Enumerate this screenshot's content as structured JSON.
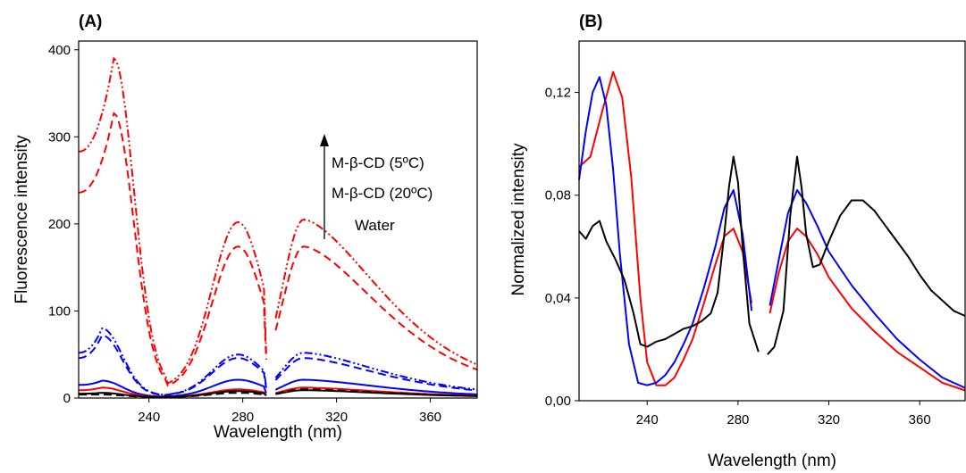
{
  "chart_data": [
    {
      "type": "line",
      "panel_label": "(A)",
      "xlabel": "Wavelength (nm)",
      "ylabel": "Fluorescence intensity",
      "xlim": [
        210,
        380
      ],
      "ylim": [
        0,
        410
      ],
      "xticks": [
        240,
        280,
        320,
        360
      ],
      "yticks": [
        0,
        100,
        200,
        300,
        400
      ],
      "x_tick_labels": [
        "240",
        "280",
        "320",
        "360"
      ],
      "y_tick_labels": [
        "0",
        "100",
        "200",
        "300",
        "400"
      ],
      "annotations": [
        "M-β-CD (5ºC)",
        "M-β-CD (20ºC)",
        "Water"
      ],
      "gap": [
        290,
        294
      ],
      "grid": false,
      "series": [
        {
          "color": "#ff0000",
          "dash": "dashdotdot",
          "base": 283,
          "y_at_280": 202,
          "peaks": {
            "x": [
              225,
              278,
              306
            ],
            "y": [
              390,
              202,
              205
            ]
          }
        },
        {
          "color": "#ff0000",
          "dash": "dashed",
          "base": 236,
          "y_at_280": 172,
          "peaks": {
            "x": [
              225,
              278,
              306
            ],
            "y": [
              327,
              174,
              174
            ]
          }
        },
        {
          "color": "#0000ff",
          "dash": "dashdotdot",
          "base": 52,
          "y_at_280": 48,
          "peaks": {
            "x": [
              220,
              278,
              306
            ],
            "y": [
              80,
              50,
              52
            ]
          }
        },
        {
          "color": "#0000ff",
          "dash": "dashed",
          "base": 46,
          "y_at_280": 45,
          "peaks": {
            "x": [
              220,
              278,
              306
            ],
            "y": [
              72,
              46,
              46
            ]
          }
        },
        {
          "color": "#0000ff",
          "dash": "solid",
          "base": 15,
          "y_at_280": 20,
          "peaks": {
            "x": [
              220,
              278,
              306
            ],
            "y": [
              20,
              21,
              21
            ]
          }
        },
        {
          "color": "#ff0000",
          "dash": "solid",
          "base": 9,
          "y_at_280": 10,
          "peaks": {
            "x": [
              220,
              278,
              306
            ],
            "y": [
              12,
              10,
              12
            ]
          }
        },
        {
          "color": "#000000",
          "dash": "solid",
          "base": 5,
          "y_at_280": 7,
          "peaks": {
            "x": [
              220,
              278,
              306
            ],
            "y": [
              6,
              8,
              9
            ]
          }
        },
        {
          "color": "#000000",
          "dash": "dashed",
          "base": 4,
          "y_at_280": 6,
          "peaks": {
            "x": [
              220,
              278,
              306
            ],
            "y": [
              4,
              6,
              10
            ]
          }
        }
      ]
    },
    {
      "type": "line",
      "panel_label": "(B)",
      "xlabel": "Wavelength (nm)",
      "ylabel": "Normalized intensity",
      "xlim": [
        210,
        380
      ],
      "ylim": [
        0,
        0.14
      ],
      "xticks": [
        240,
        280,
        320,
        360
      ],
      "yticks": [
        0,
        0.04,
        0.08,
        0.12
      ],
      "x_tick_labels": [
        "240",
        "280",
        "320",
        "360"
      ],
      "y_tick_labels": [
        "0,00",
        "0,04",
        "0,08",
        "0,12"
      ],
      "gap": [
        290,
        294
      ],
      "grid": false,
      "series": [
        {
          "color": "#ff0000",
          "dash": "solid",
          "x": [
            210,
            215,
            220,
            225,
            229,
            233,
            237,
            240,
            244,
            248,
            252,
            256,
            260,
            265,
            270,
            274,
            278,
            282,
            286,
            290,
            294,
            298,
            302,
            306,
            310,
            315,
            320,
            330,
            340,
            350,
            360,
            370,
            380
          ],
          "y": [
            0.091,
            0.095,
            0.112,
            0.128,
            0.118,
            0.087,
            0.04,
            0.015,
            0.006,
            0.006,
            0.009,
            0.016,
            0.024,
            0.038,
            0.053,
            0.064,
            0.067,
            0.058,
            0.038,
            null,
            0.034,
            0.05,
            0.062,
            0.067,
            0.064,
            0.057,
            0.048,
            0.036,
            0.027,
            0.019,
            0.013,
            0.007,
            0.004
          ]
        },
        {
          "color": "#0000ff",
          "dash": "solid",
          "x": [
            210,
            213,
            216,
            219,
            222,
            225,
            228,
            232,
            236,
            240,
            244,
            248,
            252,
            256,
            260,
            265,
            270,
            274,
            278,
            282,
            286,
            290,
            294,
            298,
            302,
            306,
            310,
            315,
            320,
            330,
            340,
            350,
            360,
            370,
            380
          ],
          "y": [
            0.086,
            0.105,
            0.12,
            0.126,
            0.115,
            0.09,
            0.057,
            0.022,
            0.007,
            0.006,
            0.007,
            0.01,
            0.015,
            0.022,
            0.03,
            0.044,
            0.06,
            0.075,
            0.082,
            0.065,
            0.035,
            null,
            0.037,
            0.055,
            0.073,
            0.082,
            0.077,
            0.068,
            0.058,
            0.045,
            0.034,
            0.024,
            0.016,
            0.009,
            0.005
          ]
        },
        {
          "color": "#000000",
          "dash": "solid",
          "x": [
            210,
            213,
            216,
            219,
            222,
            226,
            230,
            234,
            237,
            240,
            244,
            248,
            252,
            256,
            260,
            264,
            268,
            271,
            274,
            276,
            278,
            280,
            282,
            285,
            289,
            290,
            293,
            296,
            300,
            303,
            306,
            308,
            310,
            313,
            316,
            320,
            325,
            330,
            335,
            340,
            345,
            350,
            355,
            360,
            365,
            370,
            375,
            380
          ],
          "y": [
            0.066,
            0.063,
            0.068,
            0.07,
            0.062,
            0.055,
            0.047,
            0.034,
            0.022,
            0.021,
            0.023,
            0.024,
            0.026,
            0.028,
            0.029,
            0.031,
            0.034,
            0.042,
            0.065,
            0.083,
            0.095,
            0.085,
            0.06,
            0.03,
            0.019,
            null,
            0.018,
            0.021,
            0.035,
            0.072,
            0.095,
            0.083,
            0.065,
            0.052,
            0.053,
            0.062,
            0.072,
            0.078,
            0.078,
            0.074,
            0.068,
            0.062,
            0.056,
            0.049,
            0.043,
            0.039,
            0.035,
            0.033
          ]
        }
      ]
    }
  ]
}
